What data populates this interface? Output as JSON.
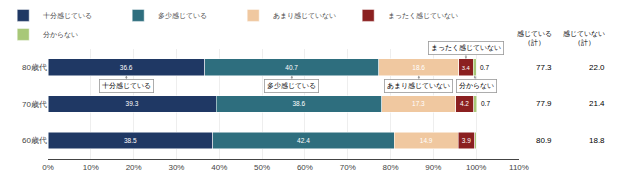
{
  "chart_data": {
    "type": "bar",
    "orientation": "horizontal",
    "stacked": true,
    "categories": [
      "80歳代",
      "70歳代",
      "60歳代"
    ],
    "series": [
      {
        "name": "十分感じている",
        "color": "#1f3864",
        "values": [
          36.6,
          39.3,
          38.5
        ]
      },
      {
        "name": "多少感じている",
        "color": "#2e6e7e",
        "values": [
          40.7,
          38.6,
          42.4
        ]
      },
      {
        "name": "あまり感じていない",
        "color": "#f0c8a0",
        "values": [
          18.6,
          17.3,
          14.9
        ]
      },
      {
        "name": "まったく感じていない",
        "color": "#8b2020",
        "values": [
          3.4,
          4.2,
          3.9
        ]
      },
      {
        "name": "分からない",
        "color": "#a8c878",
        "values": [
          0.7,
          0.7,
          0.3
        ],
        "value_labels": [
          "0.7",
          "0.7",
          null
        ]
      }
    ],
    "xlim": [
      0,
      110
    ],
    "xticks": [
      {
        "value": 0,
        "label": "0%"
      },
      {
        "value": 10,
        "label": "10%"
      },
      {
        "value": 20,
        "label": "20%"
      },
      {
        "value": 30,
        "label": "30%"
      },
      {
        "value": 40,
        "label": "40%"
      },
      {
        "value": 50,
        "label": "50%"
      },
      {
        "value": 60,
        "label": "60%"
      },
      {
        "value": 70,
        "label": "70%"
      },
      {
        "value": 80,
        "label": "80%"
      },
      {
        "value": 90,
        "label": "90%"
      },
      {
        "value": 100,
        "label": "100%"
      },
      {
        "value": 110,
        "label": "110%"
      }
    ],
    "grid": "x",
    "data_labels": true,
    "legend": "top",
    "annotations": [
      "まったく感じていない",
      "十分感じている",
      "多少感じている",
      "あまり感じていない",
      "分からない"
    ],
    "summary_columns": [
      {
        "name": "感じている\n（計）",
        "values": [
          77.3,
          77.9,
          80.9
        ]
      },
      {
        "name": "感じていない\n（計）",
        "values": [
          22.0,
          21.4,
          18.8
        ],
        "value_labels": [
          "22.0",
          "21.4",
          "18.8"
        ]
      }
    ]
  }
}
